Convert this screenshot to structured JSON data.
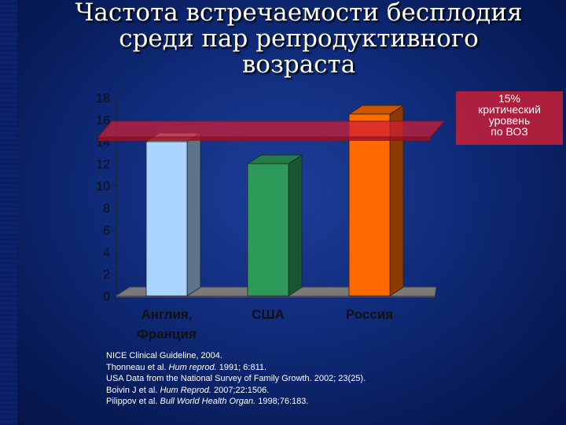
{
  "slide": {
    "title_lines": [
      "Частота встречаемости бесплодия",
      "среди пар репродуктивного",
      "возраста"
    ]
  },
  "chart_data": {
    "type": "bar",
    "categories": [
      "Англия, Франция",
      "США",
      "Россия"
    ],
    "category_lines": [
      [
        "Англия,",
        "Франция"
      ],
      [
        "США"
      ],
      [
        "Россия"
      ]
    ],
    "values": [
      14,
      12,
      16.5
    ],
    "bar_colors": [
      "#a9d4ff",
      "#2e9a5a",
      "#ff6a00"
    ],
    "ylim": [
      0,
      18
    ],
    "yticks": [
      0,
      2,
      4,
      6,
      8,
      10,
      12,
      14,
      16,
      18
    ],
    "threshold": {
      "value": 15,
      "color": "#d01e35",
      "label_lines": [
        "15%",
        "критический",
        "уровень",
        "по ВОЗ"
      ]
    },
    "grid": false,
    "three_d": true
  },
  "references": [
    [
      {
        "t": "NICE Clinical Guideline, 2004."
      }
    ],
    [
      {
        "t": "Thonneau et al. "
      },
      {
        "t": "Hum reprod.",
        "i": true
      },
      {
        "t": " 1991; 6:811."
      }
    ],
    [
      {
        "t": "USA Data from the National Survey of Family Growth. 2002; 23(25)."
      }
    ],
    [
      {
        "t": "Boivin J et al. "
      },
      {
        "t": "Hum Reprod.",
        "i": true
      },
      {
        "t": " 2007;22:1506."
      }
    ],
    [
      {
        "t": "Pilippov et al. "
      },
      {
        "t": "Bull World Health Organ.",
        "i": true
      },
      {
        "t": " 1998;76:183."
      }
    ]
  ],
  "colors": {
    "background": "#0f2a78",
    "axis_text": "#111111",
    "category_text": "#111111",
    "floor": "#7a7a7a"
  }
}
